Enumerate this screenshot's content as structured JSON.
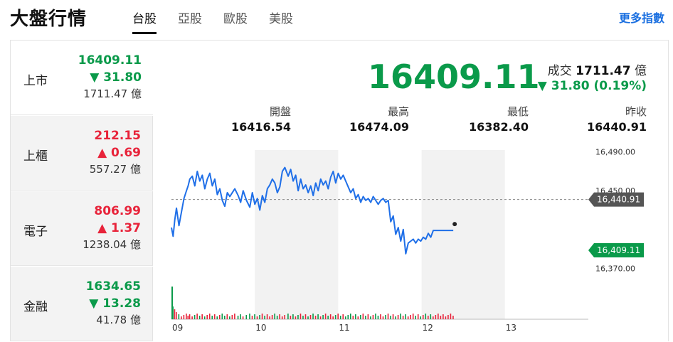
{
  "header": {
    "title": "大盤行情",
    "tabs": [
      {
        "label": "台股",
        "active": true
      },
      {
        "label": "亞股",
        "active": false
      },
      {
        "label": "歐股",
        "active": false
      },
      {
        "label": "美股",
        "active": false
      }
    ],
    "more_link": "更多指數"
  },
  "sidebar": {
    "items": [
      {
        "name": "上市",
        "price": "16409.11",
        "change": "▼ 31.80",
        "volume": "1711.47 億",
        "direction": "down",
        "active": true
      },
      {
        "name": "上櫃",
        "price": "212.15",
        "change": "▲ 0.69",
        "volume": "557.27 億",
        "direction": "up",
        "active": false
      },
      {
        "name": "電子",
        "price": "806.99",
        "change": "▲ 1.37",
        "volume": "1238.04 億",
        "direction": "up",
        "active": false
      },
      {
        "name": "金融",
        "price": "1634.65",
        "change": "▼ 13.28",
        "volume": "41.78 億",
        "direction": "down",
        "active": false
      }
    ]
  },
  "summary": {
    "price": "16409.11",
    "volume_label": "成交",
    "volume_value": "1711.47",
    "volume_unit": "億",
    "change": "▼ 31.80 (0.19%)",
    "stats": [
      {
        "label": "開盤",
        "value": "16416.54"
      },
      {
        "label": "最高",
        "value": "16474.09"
      },
      {
        "label": "最低",
        "value": "16382.40"
      },
      {
        "label": "昨收",
        "value": "16440.91"
      }
    ]
  },
  "colors": {
    "up": "#e8233a",
    "down": "#0a9a4a",
    "line": "#1f6fe8",
    "accent": "#1a6fe0"
  },
  "chart_data": {
    "type": "line",
    "x_ticks": [
      "09",
      "10",
      "11",
      "12",
      "13"
    ],
    "y_ticks": [
      "16,490.00",
      "16,450.00",
      "16,370.00"
    ],
    "y_tick_values": [
      16490,
      16450,
      16370
    ],
    "ylim": [
      16357,
      16492
    ],
    "reference_label": "16,440.91",
    "reference_value": 16440.91,
    "current_label": "16,409.11",
    "current_value": 16409.11,
    "x_range": [
      0,
      5
    ],
    "series": [
      {
        "x": [
          0,
          0.02,
          0.04,
          0.06,
          0.09,
          0.12,
          0.15,
          0.18,
          0.2,
          0.22,
          0.25,
          0.28,
          0.31,
          0.34,
          0.37,
          0.4,
          0.43,
          0.46,
          0.49,
          0.52,
          0.55,
          0.58,
          0.61,
          0.64,
          0.67,
          0.7,
          0.73,
          0.76,
          0.8,
          0.83,
          0.86,
          0.9,
          0.94,
          0.97,
          1.0,
          1.03,
          1.06,
          1.09,
          1.12,
          1.15,
          1.18,
          1.21,
          1.24,
          1.27,
          1.3,
          1.33,
          1.36,
          1.4,
          1.43,
          1.46,
          1.49,
          1.52,
          1.55,
          1.58,
          1.61,
          1.64,
          1.67,
          1.7,
          1.73,
          1.76,
          1.79,
          1.82,
          1.85,
          1.88,
          1.91,
          1.94,
          1.97,
          2.0,
          2.03,
          2.06,
          2.09,
          2.12,
          2.15,
          2.18,
          2.21,
          2.24,
          2.27,
          2.3,
          2.33,
          2.36,
          2.39,
          2.42,
          2.45,
          2.48,
          2.51,
          2.54,
          2.57,
          2.6,
          2.63,
          2.66,
          2.69,
          2.72,
          2.75,
          2.78,
          2.81,
          2.84,
          2.87,
          2.9,
          2.93,
          2.96,
          2.99,
          3.02,
          3.05,
          3.08,
          3.11,
          3.14,
          3.17,
          3.2,
          3.23,
          3.26,
          3.29,
          3.32,
          3.35,
          3.38
        ],
        "values": [
          16412,
          16403,
          16420,
          16432,
          16414,
          16428,
          16442,
          16450,
          16455,
          16462,
          16465,
          16455,
          16470,
          16460,
          16466,
          16452,
          16462,
          16468,
          16455,
          16462,
          16446,
          16452,
          16440,
          16434,
          16448,
          16444,
          16448,
          16452,
          16445,
          16438,
          16450,
          16440,
          16433,
          16448,
          16436,
          16442,
          16430,
          16445,
          16438,
          16452,
          16456,
          16462,
          16458,
          16448,
          16454,
          16470,
          16474,
          16465,
          16472,
          16460,
          16466,
          16450,
          16462,
          16452,
          16456,
          16448,
          16455,
          16445,
          16458,
          16450,
          16462,
          16456,
          16460,
          16452,
          16464,
          16470,
          16458,
          16468,
          16462,
          16466,
          16460,
          16454,
          16448,
          16452,
          16442,
          16446,
          16438,
          16444,
          16440,
          16442,
          16438,
          16444,
          16440,
          16436,
          16440,
          16442,
          16438,
          16440,
          16418,
          16424,
          16405,
          16412,
          16398,
          16410,
          16385,
          16396,
          16398,
          16400,
          16396,
          16400,
          16398,
          16402,
          16400,
          16406,
          16402,
          16409,
          16409,
          16409,
          16409,
          16409,
          16409,
          16409,
          16409,
          16409
        ]
      }
    ]
  }
}
